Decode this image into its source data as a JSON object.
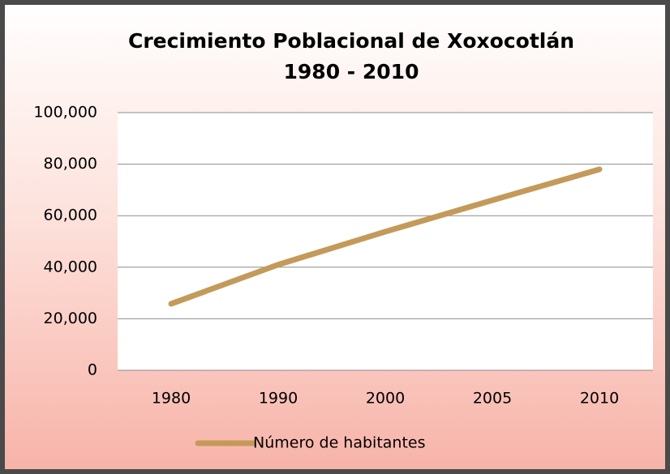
{
  "chart_data": {
    "type": "line",
    "title": [
      "Crecimiento Poblacional de Xoxocotlán",
      "1980 - 2010"
    ],
    "categories": [
      "1980",
      "1990",
      "2000",
      "2005",
      "2010"
    ],
    "series": [
      {
        "name": "Número de habitantes",
        "color": "#c49a5a",
        "values": [
          25800,
          41000,
          53800,
          66000,
          78000
        ]
      }
    ],
    "ylim": [
      0,
      100000
    ],
    "yticks": [
      0,
      {
        "value": 20000,
        "label": "20,000"
      },
      {
        "value": 40000,
        "label": "40,000"
      },
      {
        "value": 60000,
        "label": "60,000"
      },
      {
        "value": 80000,
        "label": "80,000"
      },
      {
        "value": 100000,
        "label": "100,000"
      }
    ],
    "grid": true,
    "legend": "bottom"
  }
}
